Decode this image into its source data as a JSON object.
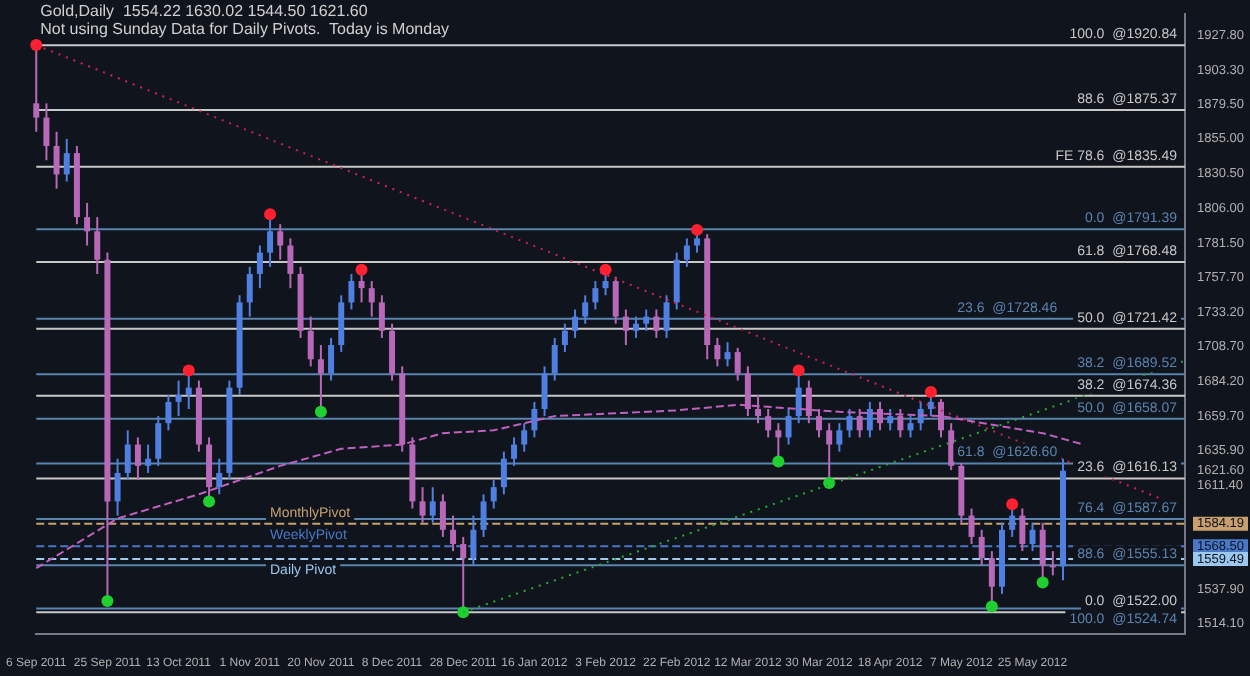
{
  "chart_data": {
    "type": "candlestick",
    "title": "Gold,Daily  1554.22 1630.02 1544.50 1621.60",
    "subtitle": "Not using Sunday Data for Daily Pivots.  Today is Monday",
    "categories": [
      "6 Sep 2011",
      null,
      null,
      null,
      null,
      null,
      null,
      "25 Sep 2011",
      null,
      null,
      null,
      null,
      null,
      null,
      "13 Oct 2011",
      null,
      null,
      null,
      null,
      null,
      null,
      "1 Nov 2011",
      null,
      null,
      null,
      null,
      null,
      null,
      "20 Nov 2011",
      null,
      null,
      null,
      null,
      null,
      null,
      "8 Dec 2011",
      null,
      null,
      null,
      null,
      null,
      null,
      "28 Dec 2011",
      null,
      null,
      null,
      null,
      null,
      null,
      "16 Jan 2012",
      null,
      null,
      null,
      null,
      null,
      null,
      "3 Feb 2012",
      null,
      null,
      null,
      null,
      null,
      null,
      "22 Feb 2012",
      null,
      null,
      null,
      null,
      null,
      null,
      "12 Mar 2012",
      null,
      null,
      null,
      null,
      null,
      null,
      "30 Mar 2012",
      null,
      null,
      null,
      null,
      null,
      null,
      "18 Apr 2012",
      null,
      null,
      null,
      null,
      null,
      null,
      "7 May 2012",
      null,
      null,
      null,
      null,
      null,
      null,
      "25 May 2012",
      null,
      null,
      null,
      null,
      null,
      null,
      null,
      null,
      null,
      null,
      null,
      null,
      null,
      null,
      null
    ],
    "ohlc": [
      [
        1880,
        1921,
        1860,
        1870
      ],
      [
        1870,
        1880,
        1840,
        1850
      ],
      [
        1850,
        1860,
        1820,
        1830
      ],
      [
        1830,
        1855,
        1825,
        1845
      ],
      [
        1845,
        1850,
        1795,
        1800
      ],
      [
        1800,
        1810,
        1780,
        1790
      ],
      [
        1790,
        1800,
        1760,
        1770
      ],
      [
        1770,
        1775,
        1532,
        1600
      ],
      [
        1600,
        1630,
        1590,
        1620
      ],
      [
        1620,
        1650,
        1615,
        1640
      ],
      [
        1640,
        1645,
        1615,
        1625
      ],
      [
        1625,
        1640,
        1620,
        1630
      ],
      [
        1630,
        1660,
        1625,
        1655
      ],
      [
        1655,
        1675,
        1650,
        1670
      ],
      [
        1670,
        1685,
        1660,
        1675
      ],
      [
        1675,
        1690,
        1665,
        1680
      ],
      [
        1680,
        1685,
        1635,
        1640
      ],
      [
        1640,
        1645,
        1602,
        1610
      ],
      [
        1610,
        1630,
        1605,
        1620
      ],
      [
        1620,
        1685,
        1615,
        1680
      ],
      [
        1680,
        1745,
        1675,
        1740
      ],
      [
        1740,
        1765,
        1730,
        1760
      ],
      [
        1760,
        1780,
        1750,
        1775
      ],
      [
        1775,
        1800,
        1765,
        1790
      ],
      [
        1790,
        1795,
        1770,
        1780
      ],
      [
        1780,
        1785,
        1750,
        1760
      ],
      [
        1760,
        1765,
        1715,
        1720
      ],
      [
        1720,
        1730,
        1695,
        1700
      ],
      [
        1700,
        1710,
        1665,
        1690
      ],
      [
        1690,
        1715,
        1685,
        1710
      ],
      [
        1710,
        1745,
        1705,
        1740
      ],
      [
        1740,
        1760,
        1735,
        1755
      ],
      [
        1755,
        1761,
        1740,
        1750
      ],
      [
        1750,
        1755,
        1730,
        1740
      ],
      [
        1740,
        1745,
        1715,
        1720
      ],
      [
        1720,
        1725,
        1685,
        1690
      ],
      [
        1690,
        1695,
        1635,
        1640
      ],
      [
        1640,
        1645,
        1595,
        1600
      ],
      [
        1600,
        1610,
        1585,
        1590
      ],
      [
        1590,
        1610,
        1585,
        1600
      ],
      [
        1600,
        1605,
        1575,
        1580
      ],
      [
        1580,
        1590,
        1565,
        1570
      ],
      [
        1570,
        1575,
        1524,
        1560
      ],
      [
        1560,
        1590,
        1555,
        1580
      ],
      [
        1580,
        1605,
        1575,
        1600
      ],
      [
        1600,
        1615,
        1595,
        1610
      ],
      [
        1610,
        1635,
        1605,
        1630
      ],
      [
        1630,
        1645,
        1625,
        1640
      ],
      [
        1640,
        1655,
        1635,
        1650
      ],
      [
        1650,
        1670,
        1645,
        1665
      ],
      [
        1665,
        1695,
        1660,
        1690
      ],
      [
        1690,
        1715,
        1685,
        1710
      ],
      [
        1710,
        1725,
        1705,
        1720
      ],
      [
        1720,
        1735,
        1715,
        1730
      ],
      [
        1730,
        1745,
        1725,
        1740
      ],
      [
        1740,
        1755,
        1735,
        1750
      ],
      [
        1750,
        1761,
        1745,
        1755
      ],
      [
        1755,
        1758,
        1725,
        1730
      ],
      [
        1730,
        1735,
        1710,
        1720
      ],
      [
        1720,
        1730,
        1715,
        1725
      ],
      [
        1725,
        1735,
        1720,
        1730
      ],
      [
        1730,
        1735,
        1715,
        1720
      ],
      [
        1720,
        1745,
        1715,
        1740
      ],
      [
        1740,
        1775,
        1735,
        1770
      ],
      [
        1770,
        1785,
        1765,
        1780
      ],
      [
        1780,
        1790,
        1775,
        1785
      ],
      [
        1785,
        1788,
        1700,
        1710
      ],
      [
        1710,
        1715,
        1695,
        1700
      ],
      [
        1700,
        1712,
        1695,
        1705
      ],
      [
        1705,
        1708,
        1685,
        1690
      ],
      [
        1690,
        1695,
        1660,
        1665
      ],
      [
        1665,
        1675,
        1655,
        1660
      ],
      [
        1660,
        1665,
        1645,
        1650
      ],
      [
        1650,
        1655,
        1630,
        1645
      ],
      [
        1645,
        1665,
        1640,
        1660
      ],
      [
        1660,
        1690,
        1655,
        1680
      ],
      [
        1680,
        1685,
        1655,
        1660
      ],
      [
        1660,
        1665,
        1645,
        1650
      ],
      [
        1650,
        1655,
        1615,
        1640
      ],
      [
        1640,
        1655,
        1635,
        1650
      ],
      [
        1650,
        1665,
        1645,
        1660
      ],
      [
        1660,
        1665,
        1645,
        1650
      ],
      [
        1650,
        1670,
        1645,
        1665
      ],
      [
        1665,
        1670,
        1650,
        1655
      ],
      [
        1655,
        1665,
        1650,
        1660
      ],
      [
        1660,
        1665,
        1645,
        1650
      ],
      [
        1650,
        1660,
        1645,
        1655
      ],
      [
        1655,
        1670,
        1650,
        1665
      ],
      [
        1665,
        1675,
        1660,
        1670
      ],
      [
        1670,
        1672,
        1645,
        1650
      ],
      [
        1650,
        1655,
        1622,
        1625
      ],
      [
        1625,
        1627,
        1585,
        1590
      ],
      [
        1590,
        1595,
        1570,
        1575
      ],
      [
        1575,
        1580,
        1555,
        1560
      ],
      [
        1560,
        1565,
        1528,
        1540
      ],
      [
        1540,
        1585,
        1535,
        1580
      ],
      [
        1580,
        1596,
        1575,
        1590
      ],
      [
        1590,
        1595,
        1565,
        1570
      ],
      [
        1570,
        1585,
        1565,
        1580
      ],
      [
        1580,
        1585,
        1545,
        1555
      ],
      [
        1555,
        1565,
        1548,
        1554
      ],
      [
        1554.22,
        1630.02,
        1544.5,
        1621.6
      ],
      null,
      null,
      null,
      null,
      null,
      null,
      null,
      null,
      null,
      null,
      null,
      null
    ],
    "colors": [
      "#b868b8",
      "#b868b8",
      "#b868b8",
      "#4f7fe0",
      "#b868b8",
      "#b868b8",
      "#b868b8",
      "#b868b8",
      "#4f7fe0",
      "#4f7fe0",
      "#b868b8",
      "#4f7fe0",
      "#4f7fe0",
      "#4f7fe0",
      "#4f7fe0",
      "#4f7fe0",
      "#b868b8",
      "#b868b8",
      "#4f7fe0",
      "#4f7fe0",
      "#4f7fe0",
      "#4f7fe0",
      "#4f7fe0",
      "#4f7fe0",
      "#b868b8",
      "#b868b8",
      "#b868b8",
      "#b868b8",
      "#b868b8",
      "#4f7fe0",
      "#4f7fe0",
      "#4f7fe0",
      "#b868b8",
      "#b868b8",
      "#b868b8",
      "#b868b8",
      "#b868b8",
      "#b868b8",
      "#b868b8",
      "#4f7fe0",
      "#b868b8",
      "#b868b8",
      "#b868b8",
      "#4f7fe0",
      "#4f7fe0",
      "#4f7fe0",
      "#4f7fe0",
      "#4f7fe0",
      "#4f7fe0",
      "#4f7fe0",
      "#4f7fe0",
      "#4f7fe0",
      "#4f7fe0",
      "#4f7fe0",
      "#4f7fe0",
      "#4f7fe0",
      "#4f7fe0",
      "#b868b8",
      "#b868b8",
      "#4f7fe0",
      "#4f7fe0",
      "#b868b8",
      "#4f7fe0",
      "#4f7fe0",
      "#4f7fe0",
      "#4f7fe0",
      "#b868b8",
      "#b868b8",
      "#4f7fe0",
      "#b868b8",
      "#b868b8",
      "#b868b8",
      "#b868b8",
      "#b868b8",
      "#4f7fe0",
      "#4f7fe0",
      "#b868b8",
      "#b868b8",
      "#b868b8",
      "#4f7fe0",
      "#4f7fe0",
      "#b868b8",
      "#4f7fe0",
      "#b868b8",
      "#4f7fe0",
      "#b868b8",
      "#4f7fe0",
      "#4f7fe0",
      "#4f7fe0",
      "#b868b8",
      "#b868b8",
      "#b868b8",
      "#b868b8",
      "#b868b8",
      "#b868b8",
      "#4f7fe0",
      "#4f7fe0",
      "#b868b8",
      "#4f7fe0",
      "#b868b8",
      "#b868b8",
      "#4f7fe0",
      null,
      null,
      null,
      null,
      null,
      null,
      null,
      null,
      null,
      null,
      null,
      null
    ],
    "series": [
      {
        "type": "line",
        "color": "#c060c0",
        "line_style": "dashed",
        "values": [
          1553,
          null,
          null,
          null,
          null,
          null,
          null,
          null,
          1588,
          null,
          null,
          null,
          null,
          null,
          null,
          null,
          1605,
          null,
          null,
          null,
          null,
          null,
          null,
          null,
          1625,
          null,
          null,
          null,
          null,
          null,
          1637,
          null,
          null,
          null,
          null,
          null,
          1640,
          null,
          null,
          null,
          1648,
          null,
          null,
          null,
          null,
          1650,
          null,
          null,
          null,
          null,
          null,
          1660,
          null,
          null,
          null,
          null,
          null,
          null,
          null,
          null,
          null,
          null,
          null,
          1664,
          null,
          null,
          null,
          null,
          null,
          1668,
          null,
          null,
          null,
          null,
          null,
          null,
          null,
          null,
          null,
          1663,
          null,
          null,
          null,
          null,
          null,
          null,
          null,
          null,
          null,
          1660,
          null,
          null,
          null,
          null,
          null,
          null,
          null,
          null,
          null,
          1648,
          null,
          null,
          null,
          1640,
          null,
          null,
          null,
          null,
          null,
          null,
          null,
          null,
          null,
          null
        ]
      },
      {
        "type": "line",
        "color": "#d02050",
        "line_style": "dotted",
        "values": [
          1921,
          null,
          null,
          null,
          null,
          null,
          null,
          null,
          null,
          null,
          null,
          null,
          null,
          null,
          null,
          null,
          null,
          null,
          null,
          null,
          null,
          null,
          null,
          null,
          null,
          null,
          null,
          null,
          null,
          null,
          null,
          null,
          null,
          null,
          null,
          null,
          null,
          null,
          null,
          null,
          null,
          null,
          null,
          null,
          null,
          null,
          null,
          null,
          null,
          null,
          null,
          null,
          null,
          null,
          null,
          null,
          null,
          null,
          null,
          null,
          null,
          null,
          null,
          null,
          null,
          null,
          null,
          null,
          null,
          null,
          null,
          null,
          null,
          null,
          null,
          null,
          null,
          null,
          null,
          null,
          null,
          null,
          null,
          null,
          null,
          null,
          null,
          null,
          null,
          null,
          null,
          null,
          null,
          null,
          null,
          null,
          null,
          null,
          null,
          null,
          null,
          null,
          null,
          null,
          null,
          null,
          null,
          null,
          null,
          null,
          null,
          null,
          null,
          1595
        ]
      },
      {
        "type": "line",
        "color": "#20b030",
        "line_style": "dotted",
        "values": [
          null,
          null,
          null,
          null,
          null,
          null,
          null,
          null,
          null,
          null,
          null,
          null,
          null,
          null,
          null,
          null,
          null,
          null,
          null,
          null,
          null,
          null,
          null,
          null,
          null,
          null,
          null,
          null,
          null,
          null,
          null,
          null,
          null,
          null,
          null,
          null,
          null,
          null,
          null,
          null,
          null,
          null,
          1522,
          null,
          null,
          null,
          null,
          null,
          null,
          null,
          null,
          null,
          null,
          null,
          null,
          null,
          null,
          null,
          null,
          null,
          null,
          null,
          null,
          null,
          null,
          null,
          null,
          null,
          null,
          null,
          null,
          null,
          null,
          null,
          null,
          null,
          null,
          null,
          null,
          null,
          null,
          null,
          null,
          null,
          null,
          null,
          null,
          null,
          null,
          null,
          null,
          null,
          null,
          null,
          null,
          null,
          null,
          null,
          null,
          null,
          null,
          null,
          null,
          null,
          null,
          null,
          null,
          null,
          null,
          null,
          null,
          null,
          null,
          1699
        ]
      },
      {
        "type": "scatter",
        "color": "#ff2030",
        "marker": "circle",
        "values": [
          1921,
          null,
          null,
          null,
          null,
          null,
          null,
          null,
          null,
          null,
          null,
          null,
          null,
          null,
          null,
          1692,
          null,
          null,
          null,
          null,
          null,
          null,
          null,
          1802,
          null,
          null,
          null,
          null,
          null,
          null,
          null,
          null,
          1763,
          null,
          null,
          null,
          null,
          null,
          null,
          null,
          null,
          null,
          null,
          null,
          null,
          null,
          null,
          null,
          null,
          null,
          null,
          null,
          null,
          null,
          null,
          null,
          1763,
          null,
          null,
          null,
          null,
          null,
          null,
          null,
          null,
          1791,
          null,
          null,
          null,
          null,
          null,
          null,
          null,
          null,
          null,
          1692,
          null,
          null,
          null,
          null,
          null,
          null,
          null,
          null,
          null,
          null,
          null,
          null,
          1677,
          null,
          null,
          null,
          null,
          null,
          null,
          null,
          1598,
          null,
          null,
          null,
          null,
          null,
          null,
          null,
          null,
          null,
          null,
          null,
          null,
          null,
          null,
          null,
          null,
          null
        ]
      },
      {
        "type": "scatter",
        "color": "#20d030",
        "marker": "circle",
        "values": [
          null,
          null,
          null,
          null,
          null,
          null,
          null,
          1530,
          null,
          null,
          null,
          null,
          null,
          null,
          null,
          null,
          null,
          1600,
          null,
          null,
          null,
          null,
          null,
          null,
          null,
          null,
          null,
          null,
          1663,
          null,
          null,
          null,
          null,
          null,
          null,
          null,
          null,
          null,
          null,
          null,
          null,
          null,
          1522,
          null,
          null,
          null,
          null,
          null,
          null,
          null,
          null,
          null,
          null,
          null,
          null,
          null,
          null,
          null,
          null,
          null,
          null,
          null,
          null,
          null,
          null,
          null,
          null,
          null,
          null,
          null,
          null,
          null,
          null,
          1628,
          null,
          null,
          null,
          null,
          1613,
          null,
          null,
          null,
          null,
          null,
          null,
          null,
          null,
          null,
          null,
          null,
          null,
          null,
          null,
          null,
          1526,
          null,
          null,
          null,
          null,
          1543,
          null,
          null,
          null,
          null,
          null,
          null,
          null,
          null,
          null,
          null,
          null,
          null,
          null,
          null
        ]
      }
    ],
    "ylim": [
      1507,
      1943
    ],
    "yticks": [
      {
        "value": 1927.8,
        "label": "1927.80"
      },
      {
        "value": 1903.3,
        "label": "1903.30"
      },
      {
        "value": 1879.5,
        "label": "1879.50"
      },
      {
        "value": 1855,
        "label": "1855.00"
      },
      {
        "value": 1830.5,
        "label": "1830.50"
      },
      {
        "value": 1806,
        "label": "1806.00"
      },
      {
        "value": 1781.5,
        "label": "1781.50"
      },
      {
        "value": 1757.7,
        "label": "1757.70"
      },
      {
        "value": 1733.2,
        "label": "1733.20"
      },
      {
        "value": 1708.7,
        "label": "1708.70"
      },
      {
        "value": 1684.2,
        "label": "1684.20"
      },
      {
        "value": 1659.7,
        "label": "1659.70"
      },
      {
        "value": 1635.9,
        "label": "1635.90"
      },
      {
        "value": 1621.6,
        "label": "1621.60"
      },
      {
        "value": 1611.4,
        "label": "1611.40"
      },
      {
        "value": 1584.19,
        "label": "1584.19"
      },
      {
        "value": 1568.5,
        "label": "1568.50"
      },
      {
        "value": 1559.49,
        "label": "1559.49"
      },
      {
        "value": 1537.9,
        "label": "1537.90"
      },
      {
        "value": 1514.1,
        "label": "1514.10"
      }
    ],
    "ref_lines": [
      {
        "axis": "y",
        "value": 1920.84,
        "label": "100.0  @1920.84",
        "color": "#c8c8c8"
      },
      {
        "axis": "y",
        "value": 1875.37,
        "label": "88.6  @1875.37",
        "color": "#c8c8c8"
      },
      {
        "axis": "y",
        "value": 1835.49,
        "label": "FE 78.6  @1835.49",
        "color": "#c8c8c8"
      },
      {
        "axis": "y",
        "value": 1768.48,
        "label": "61.8  @1768.48",
        "color": "#c8c8c8"
      },
      {
        "axis": "y",
        "value": 1721.42,
        "label": "50.0  @1721.42",
        "color": "#c8c8c8"
      },
      {
        "axis": "y",
        "value": 1674.36,
        "label": "38.2  @1674.36",
        "color": "#c8c8c8"
      },
      {
        "axis": "y",
        "value": 1616.13,
        "label": "23.6  @1616.13",
        "color": "#c8c8c8"
      },
      {
        "axis": "y",
        "value": 1522,
        "label": "0.0  @1522.00",
        "color": "#c8c8c8"
      },
      {
        "axis": "y",
        "value": 1791.39,
        "label": "0.0  @1791.39",
        "color": "#5a84b0"
      },
      {
        "axis": "y",
        "value": 1728.46,
        "label": "23.6  @1728.46",
        "color": "#5a84b0"
      },
      {
        "axis": "y",
        "value": 1689.52,
        "label": "38.2  @1689.52",
        "color": "#5a84b0"
      },
      {
        "axis": "y",
        "value": 1658.07,
        "label": "50.0  @1658.07",
        "color": "#5a84b0"
      },
      {
        "axis": "y",
        "value": 1626.6,
        "label": "61.8  @1626.60",
        "color": "#5a84b0"
      },
      {
        "axis": "y",
        "value": 1587.67,
        "label": "76.4  @1587.67",
        "color": "#5a84b0"
      },
      {
        "axis": "y",
        "value": 1555.13,
        "label": "88.6  @1555.13",
        "color": "#5a84b0"
      },
      {
        "axis": "y",
        "value": 1524.74,
        "label": "100.0  @1524.74",
        "color": "#5a84b0"
      },
      {
        "axis": "y",
        "value": 1584.19,
        "label": "MonthlyPivot",
        "color": "#c8a070",
        "line_style": "dashed"
      },
      {
        "axis": "y",
        "value": 1568.5,
        "label": "WeeklyPivot",
        "color": "#4a78c8",
        "line_style": "dashed"
      },
      {
        "axis": "y",
        "value": 1559.49,
        "label": "Daily Pivot",
        "color": "#9cc8f0",
        "line_style": "dashed"
      }
    ]
  }
}
